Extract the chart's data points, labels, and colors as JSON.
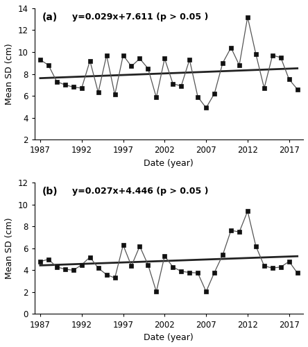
{
  "years": [
    1987,
    1988,
    1989,
    1990,
    1991,
    1992,
    1993,
    1994,
    1995,
    1996,
    1997,
    1998,
    1999,
    2000,
    2001,
    2002,
    2003,
    2004,
    2005,
    2006,
    2007,
    2008,
    2009,
    2010,
    2011,
    2012,
    2013,
    2014,
    2015,
    2016,
    2017,
    2018
  ],
  "panel_a_values": [
    9.3,
    8.8,
    7.3,
    7.0,
    6.8,
    6.7,
    9.2,
    6.3,
    9.7,
    6.1,
    9.7,
    8.7,
    9.4,
    8.5,
    5.85,
    9.4,
    7.1,
    6.9,
    9.3,
    5.9,
    4.9,
    6.2,
    9.0,
    10.4,
    8.8,
    13.2,
    9.8,
    6.7,
    9.7,
    9.5,
    7.5,
    6.6
  ],
  "panel_b_values": [
    4.8,
    5.0,
    4.3,
    4.1,
    4.0,
    4.5,
    5.2,
    4.2,
    3.6,
    3.3,
    6.3,
    4.4,
    6.2,
    4.5,
    2.05,
    5.3,
    4.3,
    3.9,
    3.8,
    3.75,
    2.05,
    3.8,
    5.4,
    7.65,
    7.5,
    9.4,
    6.2,
    4.4,
    4.2,
    4.3,
    4.8,
    3.75
  ],
  "panel_a_eq": "y=0.029x+7.611 (p > 0.05 )",
  "panel_b_eq": "y=0.027x+4.446 (p > 0.05 )",
  "panel_a_slope": 0.029,
  "panel_a_intercept": 7.611,
  "panel_b_slope": 0.027,
  "panel_b_intercept": 4.446,
  "panel_a_ylim": [
    2,
    14
  ],
  "panel_b_ylim": [
    0,
    12
  ],
  "panel_a_yticks": [
    2,
    4,
    6,
    8,
    10,
    12,
    14
  ],
  "panel_b_yticks": [
    0,
    2,
    4,
    6,
    8,
    10,
    12
  ],
  "xticks": [
    1987,
    1992,
    1997,
    2002,
    2007,
    2012,
    2017
  ],
  "xlabel": "Date (year)",
  "ylabel": "Mean SD (cm)",
  "panel_a_label": "(a)",
  "panel_b_label": "(b)",
  "line_color": "#555555",
  "marker": "s",
  "marker_color": "#111111",
  "trend_color": "#222222",
  "background_color": "#ffffff"
}
